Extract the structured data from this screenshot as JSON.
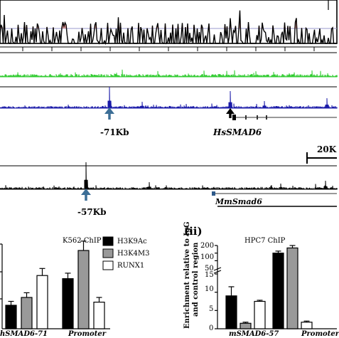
{
  "genome_browser": {
    "human_peak_label": "-71Kb",
    "human_gene_label": "HsSMAD6",
    "scale_label": "20K",
    "mouse_peak_label": "-57Kb",
    "mouse_gene_label": "MmSmad6",
    "colors": {
      "conservation_line": "#000000",
      "conservation_fill": "#e8a0a0",
      "green_track": "#33cc33",
      "blue_track": "#1a1aa8",
      "mouse_track": "#000000",
      "arrow": "#3c6e96"
    }
  },
  "panel_i": {
    "title": "K562 ChIP",
    "legend": [
      {
        "name": "H3K9Ac",
        "color": "#000000"
      },
      {
        "name": "H3K4M3",
        "color": "#999999"
      },
      {
        "name": "RUNX1",
        "color": "#ffffff"
      }
    ],
    "categories": [
      "hSMAD6-71",
      "Promoter"
    ]
  },
  "panel_ii": {
    "label": "(ii)",
    "title": "HPC7 ChIP",
    "ylabel_line1": "Enrichment relative to IgG",
    "ylabel_line2": "and control region",
    "yticks": [
      "200",
      "100",
      "50",
      "15",
      "10",
      "5",
      "0"
    ],
    "categories": [
      "mSMAD6-57",
      "Promoter"
    ]
  },
  "chart_data": [
    {
      "type": "bar",
      "title": "K562 ChIP",
      "categories": [
        "hSMAD6-71",
        "Promoter"
      ],
      "series": [
        {
          "name": "H3K9Ac",
          "values": [
            1.5,
            3.2
          ]
        },
        {
          "name": "H3K4M3",
          "values": [
            2.0,
            5.0
          ]
        },
        {
          "name": "RUNX1",
          "values": [
            3.4,
            1.7
          ]
        }
      ]
    },
    {
      "type": "bar",
      "title": "HPC7 ChIP",
      "ylabel": "Enrichment relative to IgG and control region",
      "categories": [
        "mSMAD6-57",
        "Promoter"
      ],
      "series": [
        {
          "name": "H3K9Ac",
          "values": [
            9,
            100
          ],
          "errors": [
            2.5,
            20
          ]
        },
        {
          "name": "H3K4M3",
          "values": [
            1.5,
            160
          ],
          "errors": [
            0.3,
            40
          ]
        },
        {
          "name": "RUNX1",
          "values": [
            7.5,
            1.8
          ],
          "errors": [
            0.3,
            0.3
          ]
        }
      ]
    }
  ]
}
